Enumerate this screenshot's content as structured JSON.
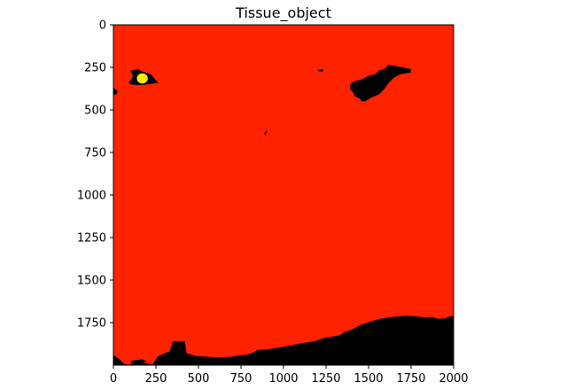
{
  "chart_data": {
    "type": "heatmap",
    "title": "Tissue_object",
    "xlabel": "",
    "ylabel": "",
    "xlim": [
      0,
      2000
    ],
    "ylim": [
      2000,
      0
    ],
    "x_ticks": [
      0,
      250,
      500,
      750,
      1000,
      1250,
      1500,
      1750,
      2000
    ],
    "y_ticks": [
      0,
      250,
      500,
      750,
      1000,
      1250,
      1500,
      1750
    ],
    "grid": false,
    "legend": "none",
    "colors": {
      "tissue": "#ff2200",
      "background": "#000000",
      "object": "#ffee00"
    },
    "regions": [
      {
        "name": "tissue",
        "color": "#ff2200",
        "polygon": [
          [
            0,
            0
          ],
          [
            2000,
            0
          ],
          [
            2000,
            2000
          ],
          [
            0,
            2000
          ]
        ]
      },
      {
        "name": "background-bottom",
        "color": "#000000",
        "polygon": [
          [
            0,
            2000
          ],
          [
            0,
            1940
          ],
          [
            30,
            1960
          ],
          [
            60,
            1990
          ],
          [
            90,
            1998
          ],
          [
            150,
            1980
          ],
          [
            200,
            1990
          ],
          [
            230,
            1996
          ],
          [
            260,
            1950
          ],
          [
            300,
            1930
          ],
          [
            330,
            1920
          ],
          [
            350,
            1860
          ],
          [
            420,
            1860
          ],
          [
            430,
            1930
          ],
          [
            480,
            1945
          ],
          [
            620,
            1955
          ],
          [
            700,
            1950
          ],
          [
            800,
            1935
          ],
          [
            850,
            1910
          ],
          [
            920,
            1905
          ],
          [
            980,
            1895
          ],
          [
            1020,
            1888
          ],
          [
            1060,
            1880
          ],
          [
            1100,
            1872
          ],
          [
            1180,
            1860
          ],
          [
            1240,
            1840
          ],
          [
            1330,
            1825
          ],
          [
            1360,
            1805
          ],
          [
            1400,
            1792
          ],
          [
            1450,
            1765
          ],
          [
            1520,
            1740
          ],
          [
            1580,
            1725
          ],
          [
            1650,
            1715
          ],
          [
            1720,
            1710
          ],
          [
            1780,
            1712
          ],
          [
            1830,
            1720
          ],
          [
            1870,
            1717
          ],
          [
            1910,
            1728
          ],
          [
            1950,
            1725
          ],
          [
            1980,
            1713
          ],
          [
            2000,
            1710
          ],
          [
            2000,
            2000
          ]
        ]
      },
      {
        "name": "background-right-hole",
        "color": "#000000",
        "polygon": [
          [
            1420,
            330
          ],
          [
            1460,
            320
          ],
          [
            1500,
            300
          ],
          [
            1540,
            290
          ],
          [
            1560,
            270
          ],
          [
            1600,
            255
          ],
          [
            1615,
            235
          ],
          [
            1650,
            240
          ],
          [
            1700,
            250
          ],
          [
            1750,
            260
          ],
          [
            1750,
            280
          ],
          [
            1690,
            290
          ],
          [
            1650,
            310
          ],
          [
            1620,
            340
          ],
          [
            1590,
            380
          ],
          [
            1560,
            410
          ],
          [
            1520,
            425
          ],
          [
            1480,
            450
          ],
          [
            1460,
            450
          ],
          [
            1450,
            435
          ],
          [
            1420,
            420
          ],
          [
            1410,
            400
          ],
          [
            1390,
            375
          ],
          [
            1395,
            345
          ]
        ]
      },
      {
        "name": "background-left-hole",
        "color": "#000000",
        "polygon": [
          [
            100,
            270
          ],
          [
            145,
            260
          ],
          [
            170,
            275
          ],
          [
            220,
            290
          ],
          [
            245,
            320
          ],
          [
            265,
            340
          ],
          [
            235,
            345
          ],
          [
            200,
            350
          ],
          [
            150,
            355
          ],
          [
            100,
            350
          ],
          [
            90,
            335
          ],
          [
            105,
            320
          ],
          [
            115,
            300
          ]
        ]
      },
      {
        "name": "background-left-edge",
        "color": "#000000",
        "polygon": [
          [
            0,
            370
          ],
          [
            20,
            385
          ],
          [
            25,
            395
          ],
          [
            15,
            410
          ],
          [
            0,
            410
          ]
        ]
      },
      {
        "name": "background-speck-1",
        "color": "#000000",
        "polygon": [
          [
            1200,
            265
          ],
          [
            1235,
            262
          ],
          [
            1230,
            275
          ],
          [
            1205,
            272
          ]
        ]
      },
      {
        "name": "background-speck-2",
        "color": "#000000",
        "polygon": [
          [
            885,
            640
          ],
          [
            905,
            615
          ],
          [
            895,
            650
          ]
        ]
      },
      {
        "name": "background-speck-3",
        "color": "#000000",
        "polygon": [
          [
            100,
            1975
          ],
          [
            170,
            1965
          ],
          [
            200,
            1980
          ],
          [
            110,
            1990
          ]
        ]
      },
      {
        "name": "object",
        "color": "#ffee00",
        "ellipse": {
          "cx": 170,
          "cy": 315,
          "rx": 32,
          "ry": 30
        }
      }
    ]
  }
}
